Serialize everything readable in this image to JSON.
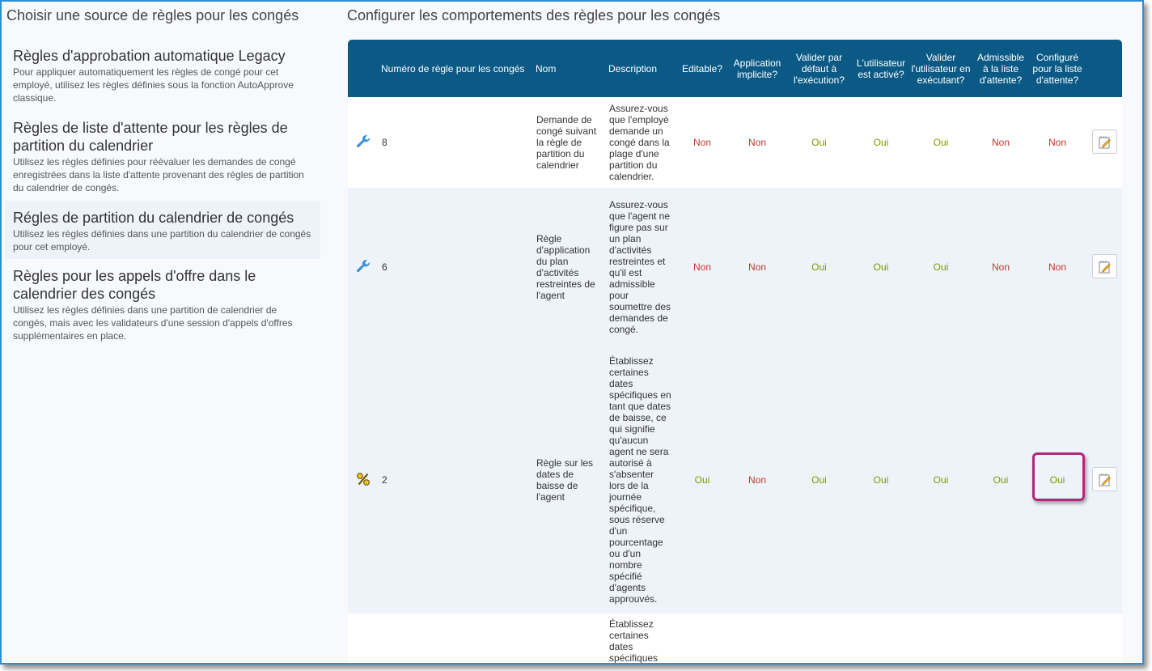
{
  "left_panel": {
    "title": "Choisir une source de règles pour les congés",
    "sources": [
      {
        "title": "Règles d'approbation automatique Legacy",
        "desc": "Pour appliquer automatiquement les règles de congé pour cet employé, utilisez les règles définies sous la fonction AutoApprove classique."
      },
      {
        "title": "Règles de liste d'attente pour les règles de partition du calendrier",
        "desc": "Utilisez les règles définies pour réévaluer les demandes de congé enregistrées dans la liste d'attente provenant des règles de partition du calendrier de congés."
      },
      {
        "title": "Régles de partition du calendrier de congés",
        "desc": "Utilisez les règles définies dans une partition du calendrier de congés pour cet employé."
      },
      {
        "title": "Règles pour les appels d'offre dans le calendrier des congés",
        "desc": "Utilisez les règles définies dans une partition de calendrier de congés, mais avec les validateurs d'une session d'appels d'offres supplémentaires en place."
      }
    ]
  },
  "right_panel": {
    "title": "Configurer les comportements des règles pour les congés",
    "headers": [
      "Numéro de règle pour les congés",
      "Nom",
      "Description",
      "Editable?",
      "Application implicite?",
      "Valider par défaut à l'exécution?",
      "L'utilisateur est activé?",
      "Valider l'utilisateur en exécutant?",
      "Admissible à la liste d'attente?",
      "Configuré pour la liste d'attente?"
    ],
    "rows": [
      {
        "icon": "wrench-icon",
        "number": "8",
        "name": "Demande de congé suivant la règle de partition du calendrier",
        "description": "Assurez-vous que l'employé demande un congé dans la plage d'une partition du calendrier.",
        "flags": [
          "Non",
          "Non",
          "Oui",
          "Oui",
          "Oui",
          "Non",
          "Non"
        ]
      },
      {
        "icon": "wrench-icon",
        "number": "6",
        "name": "Règle d'application du plan d'activités restreintes de l'agent",
        "description": "Assurez-vous que l'agent ne figure pas sur un plan d'activités restreintes et qu'il est admissible pour soumettre des demandes de congé.",
        "flags": [
          "Non",
          "Non",
          "Oui",
          "Oui",
          "Oui",
          "Non",
          "Non"
        ]
      },
      {
        "icon": "percent-icon",
        "number": "2",
        "name": "Règle sur les dates de baisse de l'agent",
        "description": "Établissez certaines dates spécifiques en tant que dates de baisse, ce qui signifie qu'aucun agent ne sera autorisé à s'absenter lors de la journée spécifique, sous réserve d'un pourcentage ou d'un nombre spécifié d'agents approuvés.",
        "flags": [
          "Oui",
          "Non",
          "Oui",
          "Oui",
          "Oui",
          "Oui",
          "Oui"
        ]
      },
      {
        "icon": "",
        "number": "",
        "name": "",
        "description": "Établissez certaines dates spécifiques",
        "flags": [
          "",
          "",
          "",
          "",
          "",
          "",
          ""
        ]
      }
    ]
  },
  "colors": {
    "header_bg": "#0b5a86",
    "no": "#c0392b",
    "yes": "#7a9a00",
    "highlight": "#b0287a",
    "frame": "#2b8fd6"
  }
}
